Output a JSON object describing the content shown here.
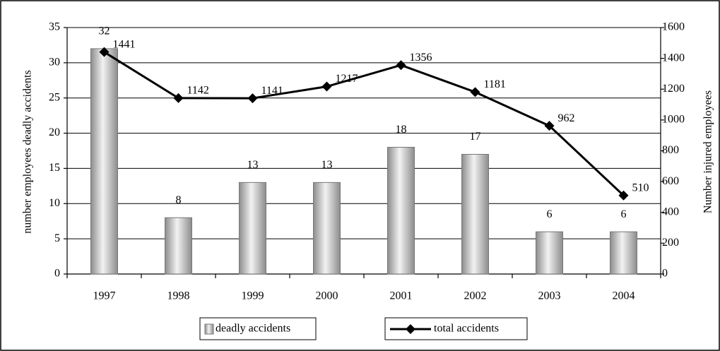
{
  "chart_data": {
    "type": "bar",
    "categories": [
      "1997",
      "1998",
      "1999",
      "2000",
      "2001",
      "2002",
      "2003",
      "2004"
    ],
    "series": [
      {
        "name": "deadly accidents",
        "color": "#a0a0a0",
        "values": [
          32,
          8,
          13,
          13,
          18,
          17,
          6,
          6
        ]
      },
      {
        "name": "total accidents",
        "color": "#000000",
        "type": "line",
        "axis": "y2",
        "values": [
          1441,
          1142,
          1141,
          1217,
          1356,
          1181,
          962,
          510
        ]
      }
    ],
    "ylabel": "number employees deadly accidents",
    "y2label": "Number injured employees",
    "ylim": [
      0,
      35
    ],
    "yticks": [
      0,
      5,
      10,
      15,
      20,
      25,
      30,
      35
    ],
    "y2lim": [
      0,
      1600
    ],
    "y2ticks": [
      0,
      200,
      400,
      600,
      800,
      1000,
      1200,
      1400,
      1600
    ],
    "grid": true
  }
}
